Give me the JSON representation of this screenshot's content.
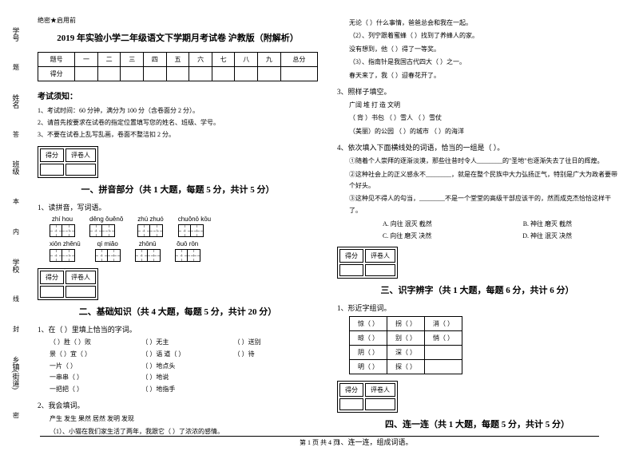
{
  "side": {
    "labels": [
      "学号",
      "姓名",
      "班级",
      "学校",
      "乡镇(街道)"
    ],
    "marks": [
      "题",
      "答",
      "本",
      "内",
      "线",
      "封",
      "密"
    ]
  },
  "header_tag": "绝密★启用前",
  "title": "2019 年实验小学二年级语文下学期月考试卷 沪教版（附解析）",
  "score_table": {
    "row1": [
      "题号",
      "一",
      "二",
      "三",
      "四",
      "五",
      "六",
      "七",
      "八",
      "九",
      "总分"
    ],
    "row2": [
      "得分",
      "",
      "",
      "",
      "",
      "",
      "",
      "",
      "",
      "",
      ""
    ]
  },
  "rules": {
    "heading": "考试须知：",
    "items": [
      "1、考试时间：60 分钟，满分为 100 分（含卷面分 2 分）。",
      "2、请首先按要求在试卷的指定位置填写您的姓名、班级、学号。",
      "3、不要在试卷上乱写乱画，卷面不整洁扣 2 分。"
    ]
  },
  "scorebox": {
    "c1": "得分",
    "c2": "评卷人"
  },
  "sec1": {
    "title": "一、拼音部分（共 1 大题，每题 5 分，共计 5 分）",
    "q1": "1、读拼音，写词语。",
    "row1": [
      "zhí  hou",
      "děnɡ ǒuěnǒ",
      "zhú  zhuó",
      "chuǒnō kōu"
    ],
    "row2": [
      "xiōn zhěnū",
      "qí   miǎo",
      "zhōnū",
      "ǒuō  rōn"
    ]
  },
  "sec2": {
    "title": "二、基础知识（共 4 大题，每题 5 分，共计 20 分）",
    "q1": "1、在（    ）里填上恰当的字词。",
    "grid1": [
      "（    ）胜（    ）败",
      "（    ）无主",
      "（    ）送别",
      "景（    ）宜（    ）",
      "（    ）语   道（    ）",
      "（    ）待",
      "一片（    ）",
      "（    ）地点头",
      "",
      "一串串（    ）",
      "（    ）地说",
      "",
      "一把把（    ）",
      "（    ）地指手",
      ""
    ],
    "q2": "2、我会填词。",
    "q2_words": "产生    发生        果然    居然        发明    发现",
    "q2_line1": "（1）、小猫在我们家生活了两年，我跟它（        ）了浓浓的感情。"
  },
  "right": {
    "lines": [
      "无论（    ）什么事情，爸爸总会和我在一起。",
      "（2）、列宁跟着蜜蜂（        ）找到了养蜂人的家。",
      "没有想到，他（        ）得了一等奖。",
      "（3）、指南针是我国古代四大（        ）之一。",
      "春天来了，我（        ）迎春花开了。"
    ],
    "q3": "3、照样子填空。",
    "q3_words": "广阔        堆        打        造        文明",
    "q3_lines": [
      "（    背    ）书包        （        ）雪人            （        ）雪仗",
      "（美丽）的公园        （        ）的城市        （        ）的海洋"
    ],
    "q4": "4、依次填入下面横线处的词语，恰当的一组是（        ）。",
    "q4_lines": [
      "①随着个人崇拜的逐渐淡漠，那些往昔时令人________的\"圣地\"也逐渐失去了往日的辉煌。",
      "②这种社会上的正义感永不________，就是在整个民族中大力弘扬正气，特别是广大为政者要带个好头。",
      "③这种见不得人的勾当，________不是一个堂堂的高级干部应该干的，然而成克杰恰恰这样干了。"
    ],
    "opts": [
      "A. 向往    泯灭    截然",
      "B. 神往    磨灭    截然",
      "C. 向往    磨灭    决然",
      "D. 神往    泯灭    决然"
    ]
  },
  "sec3": {
    "title": "三、识字辨字（共 1 大题，每题 6 分，共计 6 分）",
    "q1": "1、形近字组词。",
    "rows": [
      [
        "惊（        ）",
        "拐（        ）",
        "消（        ）"
      ],
      [
        "晾（        ）",
        "别（        ）",
        "悄（        ）"
      ],
      [
        "阴（        ）",
        "深（        ）",
        ""
      ],
      [
        "明（        ）",
        "探（        ）",
        ""
      ]
    ]
  },
  "sec4": {
    "title": "四、连一连（共 1 大题，每题 5 分，共计 5 分）",
    "q1": "1、连一连，组成词语。"
  },
  "footer": "第 1 页  共 4 页"
}
